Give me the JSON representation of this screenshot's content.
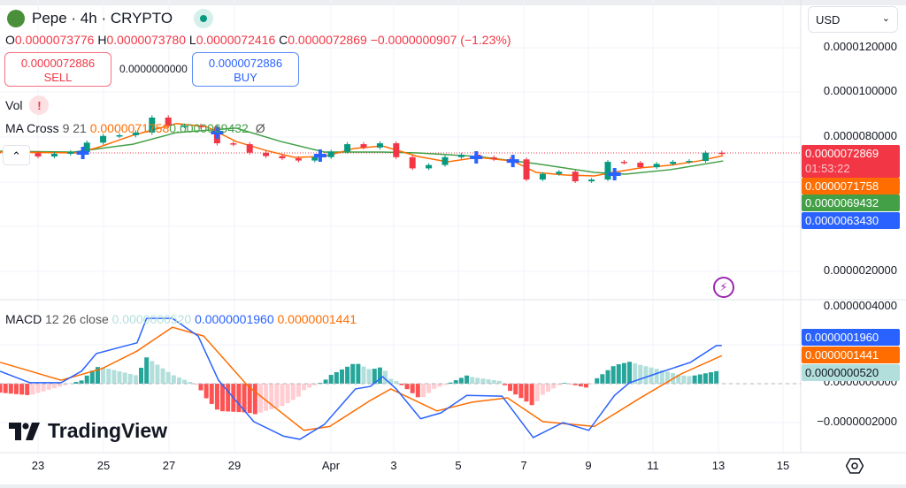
{
  "header": {
    "symbol": "Pepe · 4h · CRYPTO",
    "market_status": "open"
  },
  "ohlc": {
    "o_label": "O",
    "o": "0.0000073776",
    "h_label": "H",
    "h": "0.0000073780",
    "l_label": "L",
    "l": "0.0000072416",
    "c_label": "C",
    "c": "0.0000072869",
    "change": "−0.0000000907 (−1.23%)"
  },
  "trade": {
    "sell_price": "0.0000072886",
    "sell_label": "SELL",
    "spread": "0.0000000000",
    "buy_price": "0.0000072886",
    "buy_label": "BUY"
  },
  "indicators": {
    "vol_label": "Vol",
    "vol_warning": "!",
    "ma_label": "MA Cross",
    "ma_params": "9 21",
    "ma_fast": "0.0000071758",
    "ma_slow": "0.0000069432",
    "ma_extra": "Ø",
    "macd_label": "MACD",
    "macd_params": "12 26 close",
    "macd_hist": "0.0000000520",
    "macd_line": "0.0000001960",
    "macd_signal": "0.0000001441"
  },
  "currency": "USD",
  "price_axis": [
    "0.0000120000",
    "0.0000100000",
    "0.0000080000",
    "0.0000020000"
  ],
  "price_labels": {
    "last": "0.0000072869",
    "countdown": "01:53:22",
    "ma_fast": "0.0000071758",
    "ma_slow": "0.0000069432",
    "blue": "0.0000063430"
  },
  "macd_axis": [
    "0.0000004000",
    "0.0000000000",
    "−0.0000002000"
  ],
  "macd_labels": {
    "line": "0.0000001960",
    "signal": "0.0000001441",
    "hist": "0.0000000520"
  },
  "time_axis": [
    "23",
    "25",
    "27",
    "29",
    "Apr",
    "3",
    "5",
    "7",
    "9",
    "11",
    "13",
    "15"
  ],
  "brand": "TradingView",
  "colors": {
    "up": "#089981",
    "down": "#f23645",
    "ma_fast": "#ff6d00",
    "ma_slow": "#43a047",
    "macd": "#2962ff",
    "signal": "#ff6d00",
    "cross": "#2962ff"
  },
  "chart_data": {
    "type": "candlestick",
    "candles": [
      [
        "03-22 00",
        7.29e-06
      ],
      [
        "03-22 12",
        7.28e-06
      ],
      [
        "03-23 00",
        7.13e-06
      ],
      [
        "03-23 12",
        7.25e-06
      ],
      [
        "03-24 00",
        7.33e-06
      ],
      [
        "03-24 12",
        7.75e-06
      ],
      [
        "03-25 00",
        8.05e-06
      ],
      [
        "03-25 12",
        8.08e-06
      ],
      [
        "03-26 00",
        8.2e-06
      ],
      [
        "03-26 12",
        8.87e-06
      ],
      [
        "03-27 00",
        8.5e-06
      ],
      [
        "03-27 12",
        8.5e-06
      ],
      [
        "03-28 00",
        8.45e-06
      ],
      [
        "03-28 12",
        7.72e-06
      ],
      [
        "03-29 00",
        7.68e-06
      ],
      [
        "03-29 12",
        7.3e-06
      ],
      [
        "03-30 00",
        7.15e-06
      ],
      [
        "03-30 12",
        7.05e-06
      ],
      [
        "03-31 00",
        6.95e-06
      ],
      [
        "03-31 12",
        7.1e-06
      ],
      [
        "04-01 00",
        7.35e-06
      ],
      [
        "04-01 12",
        7.68e-06
      ],
      [
        "04-02 00",
        7.53e-06
      ],
      [
        "04-02 12",
        7.72e-06
      ],
      [
        "04-03 00",
        7.1e-06
      ],
      [
        "04-03 12",
        6.6e-06
      ],
      [
        "04-04 00",
        6.75e-06
      ],
      [
        "04-04 12",
        7.1e-06
      ],
      [
        "04-05 00",
        7.21e-06
      ],
      [
        "04-05 12",
        7.09e-06
      ],
      [
        "04-06 00",
        7.01e-06
      ],
      [
        "04-06 12",
        7e-06
      ],
      [
        "04-07 00",
        6.1e-06
      ],
      [
        "04-07 12",
        6.35e-06
      ],
      [
        "04-08 00",
        6.45e-06
      ],
      [
        "04-08 12",
        6.02e-06
      ],
      [
        "04-09 00",
        6.1e-06
      ],
      [
        "04-09 12",
        6.89e-06
      ],
      [
        "04-10 00",
        6.85e-06
      ],
      [
        "04-10 12",
        6.65e-06
      ],
      [
        "04-11 00",
        6.8e-06
      ],
      [
        "04-11 12",
        6.89e-06
      ],
      [
        "04-12 00",
        6.93e-06
      ],
      [
        "04-12 12",
        7.3e-06
      ],
      [
        "04-13 00",
        7.29e-06
      ]
    ],
    "ma_fast": [
      [
        "03-21 20",
        7.33e-06
      ],
      [
        "03-24 05",
        7.29e-06
      ],
      [
        "03-24 20",
        7.53e-06
      ],
      [
        "03-25 22",
        8.08e-06
      ],
      [
        "03-27 06",
        8.6e-06
      ],
      [
        "03-28 04",
        8.47e-06
      ],
      [
        "03-29 02",
        7.8e-06
      ],
      [
        "03-30 00",
        7.4e-06
      ],
      [
        "03-30 21",
        7.09e-06
      ],
      [
        "03-31 19",
        7.13e-06
      ],
      [
        "04-01 17",
        7.49e-06
      ],
      [
        "04-02 14",
        7.6e-06
      ],
      [
        "04-03 16",
        7.13e-06
      ],
      [
        "04-04 14",
        6.89e-06
      ],
      [
        "04-05 12",
        7.09e-06
      ],
      [
        "04-06 14",
        6.93e-06
      ],
      [
        "04-07 07",
        6.42e-06
      ],
      [
        "04-08 05",
        6.3e-06
      ],
      [
        "04-09 02",
        6.26e-06
      ],
      [
        "04-09 16",
        6.42e-06
      ],
      [
        "04-10 12",
        6.62e-06
      ],
      [
        "04-11 10",
        6.74e-06
      ],
      [
        "04-12 07",
        6.93e-06
      ],
      [
        "04-13 01",
        7.17e-06
      ]
    ],
    "ma_slow": [
      [
        "03-21 20",
        7.37e-06
      ],
      [
        "03-24 02",
        7.33e-06
      ],
      [
        "03-25 22",
        7.68e-06
      ],
      [
        "03-27 06",
        8.2e-06
      ],
      [
        "03-29 02",
        8.4e-06
      ],
      [
        "03-30 11",
        7.8e-06
      ],
      [
        "03-31 19",
        7.33e-06
      ],
      [
        "04-02 14",
        7.33e-06
      ],
      [
        "04-03 16",
        7.29e-06
      ],
      [
        "04-05 12",
        7.13e-06
      ],
      [
        "04-07 07",
        6.81e-06
      ],
      [
        "04-09 02",
        6.42e-06
      ],
      [
        "04-10 01",
        6.34e-06
      ],
      [
        "04-11 10",
        6.54e-06
      ],
      [
        "04-13 01",
        6.93e-06
      ]
    ],
    "crosses": [
      [
        "03-24 09",
        7.29e-06
      ],
      [
        "03-28 12",
        8.2e-06
      ],
      [
        "03-31 16",
        7.17e-06
      ],
      [
        "04-05 11",
        7.09e-06
      ],
      [
        "04-06 14",
        6.93e-06
      ],
      [
        "04-09 17",
        6.34e-06
      ]
    ],
    "last_price": 7.2869e-06,
    "macd": [
      [
        "03-21 20",
        6.4e-08
      ],
      [
        "03-22 18",
        5e-09
      ],
      [
        "03-23 17",
        5e-09
      ],
      [
        "03-24 08",
        6.4e-08
      ],
      [
        "03-24 19",
        1.55e-07
      ],
      [
        "03-25 14",
        1.9e-07
      ],
      [
        "03-26 01",
        2.1e-07
      ],
      [
        "03-26 08",
        3.36e-07
      ],
      [
        "03-27 03",
        3.36e-07
      ],
      [
        "03-27 22",
        2.45e-07
      ],
      [
        "03-28 13",
        1.8e-08
      ],
      [
        "03-29 15",
        -1.95e-07
      ],
      [
        "03-30 13",
        -2.7e-07
      ],
      [
        "03-31 01",
        -2.86e-07
      ],
      [
        "03-31 19",
        -2.1e-07
      ],
      [
        "04-01 18",
        -2.7e-08
      ],
      [
        "04-02 05",
        -1.4e-08
      ],
      [
        "04-02 14",
        3.6e-08
      ],
      [
        "04-03 00",
        -2.7e-08
      ],
      [
        "04-03 18",
        -1.8e-07
      ],
      [
        "04-04 09",
        -1.5e-07
      ],
      [
        "04-05 04",
        -6e-08
      ],
      [
        "04-06 06",
        -6.4e-08
      ],
      [
        "04-07 05",
        -2.77e-07
      ],
      [
        "04-08 03",
        -2e-07
      ],
      [
        "04-08 22",
        -2.4e-07
      ],
      [
        "04-09 17",
        -6e-08
      ],
      [
        "04-10 04",
        5e-09
      ],
      [
        "04-10 23",
        5e-08
      ],
      [
        "04-12 01",
        1.1e-07
      ],
      [
        "04-12 20",
        1.96e-07
      ],
      [
        "04-13 00",
        1.96e-07
      ]
    ],
    "signal": [
      [
        "03-21 20",
        1.1e-07
      ],
      [
        "03-23 17",
        1.8e-08
      ],
      [
        "03-24 23",
        7.7e-08
      ],
      [
        "03-26 01",
        1.68e-07
      ],
      [
        "03-27 03",
        2.9e-07
      ],
      [
        "03-28 02",
        2.45e-07
      ],
      [
        "03-29 11",
        -1.4e-08
      ],
      [
        "03-31 04",
        -2.4e-07
      ],
      [
        "03-31 23",
        -2.2e-07
      ],
      [
        "04-02 05",
        -8.6e-08
      ],
      [
        "04-02 20",
        -2.7e-08
      ],
      [
        "04-04 06",
        -1.4e-07
      ],
      [
        "04-05 08",
        -9.5e-08
      ],
      [
        "04-06 10",
        -7.3e-08
      ],
      [
        "04-07 12",
        -1.95e-07
      ],
      [
        "04-09 02",
        -2.2e-07
      ],
      [
        "04-10 12",
        -7.3e-08
      ],
      [
        "04-11 18",
        5e-08
      ],
      [
        "04-13 00",
        1.441e-07
      ]
    ],
    "price_ylim": [
      1.9e-06,
      1.24e-05
    ],
    "macd_ylim": [
      -3e-07,
      4.1e-07
    ],
    "grid": true
  }
}
